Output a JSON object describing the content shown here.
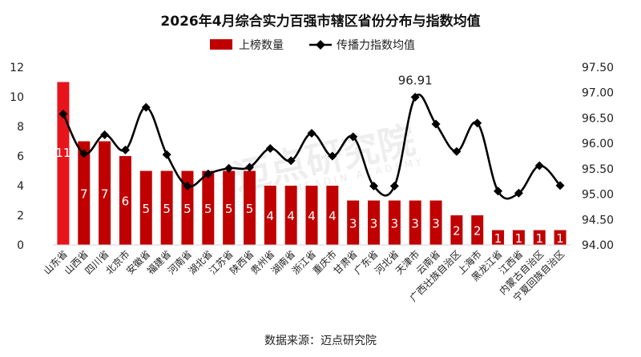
{
  "chart_data": {
    "type": "bar",
    "title": "2026年4月综合实力百强市辖区省份分布与指数均值",
    "legend": [
      "上榜数量",
      "传播力指数均值"
    ],
    "legend_position": "top",
    "categories": [
      "山东省",
      "山西省",
      "四川省",
      "北京市",
      "安徽省",
      "福建省",
      "河南省",
      "湖北省",
      "江苏省",
      "陕西省",
      "贵州省",
      "湖南省",
      "浙江省",
      "重庆市",
      "甘肃省",
      "广东省",
      "河北省",
      "天津市",
      "云南省",
      "广西壮族自治区",
      "上海市",
      "黑龙江省",
      "江西省",
      "内蒙古自治区",
      "宁夏回族自治区"
    ],
    "series": [
      {
        "name": "上榜数量",
        "type": "bar",
        "axis": "left",
        "color": "#c00000",
        "highlight_color": "#e8141b",
        "values": [
          11,
          7,
          7,
          6,
          5,
          5,
          5,
          5,
          5,
          5,
          4,
          4,
          4,
          4,
          3,
          3,
          3,
          3,
          3,
          2,
          2,
          1,
          1,
          1,
          1
        ]
      },
      {
        "name": "传播力指数均值",
        "type": "line",
        "axis": "right",
        "color": "#000000",
        "values": [
          96.58,
          95.8,
          96.17,
          95.87,
          96.71,
          95.78,
          95.16,
          95.4,
          95.51,
          95.53,
          95.9,
          95.66,
          96.2,
          95.75,
          96.13,
          95.16,
          95.16,
          96.91,
          96.38,
          95.84,
          96.4,
          95.06,
          95.02,
          95.56,
          95.17
        ]
      }
    ],
    "y_left": {
      "min": 0,
      "max": 12,
      "ticks": [
        "0",
        "2",
        "4",
        "6",
        "8",
        "10",
        "12"
      ]
    },
    "y_right": {
      "min": 94.0,
      "max": 97.5,
      "ticks": [
        "94.00",
        "94.50",
        "95.00",
        "95.50",
        "96.00",
        "96.50",
        "97.00",
        "97.50"
      ]
    },
    "annotation": {
      "text": "96.91",
      "category": "天津市"
    },
    "grid": false
  },
  "source_text": "数据来源：迈点研究院",
  "watermark": {
    "text": "迈点研究院",
    "subtext": "MEADIN ACADEMY"
  }
}
